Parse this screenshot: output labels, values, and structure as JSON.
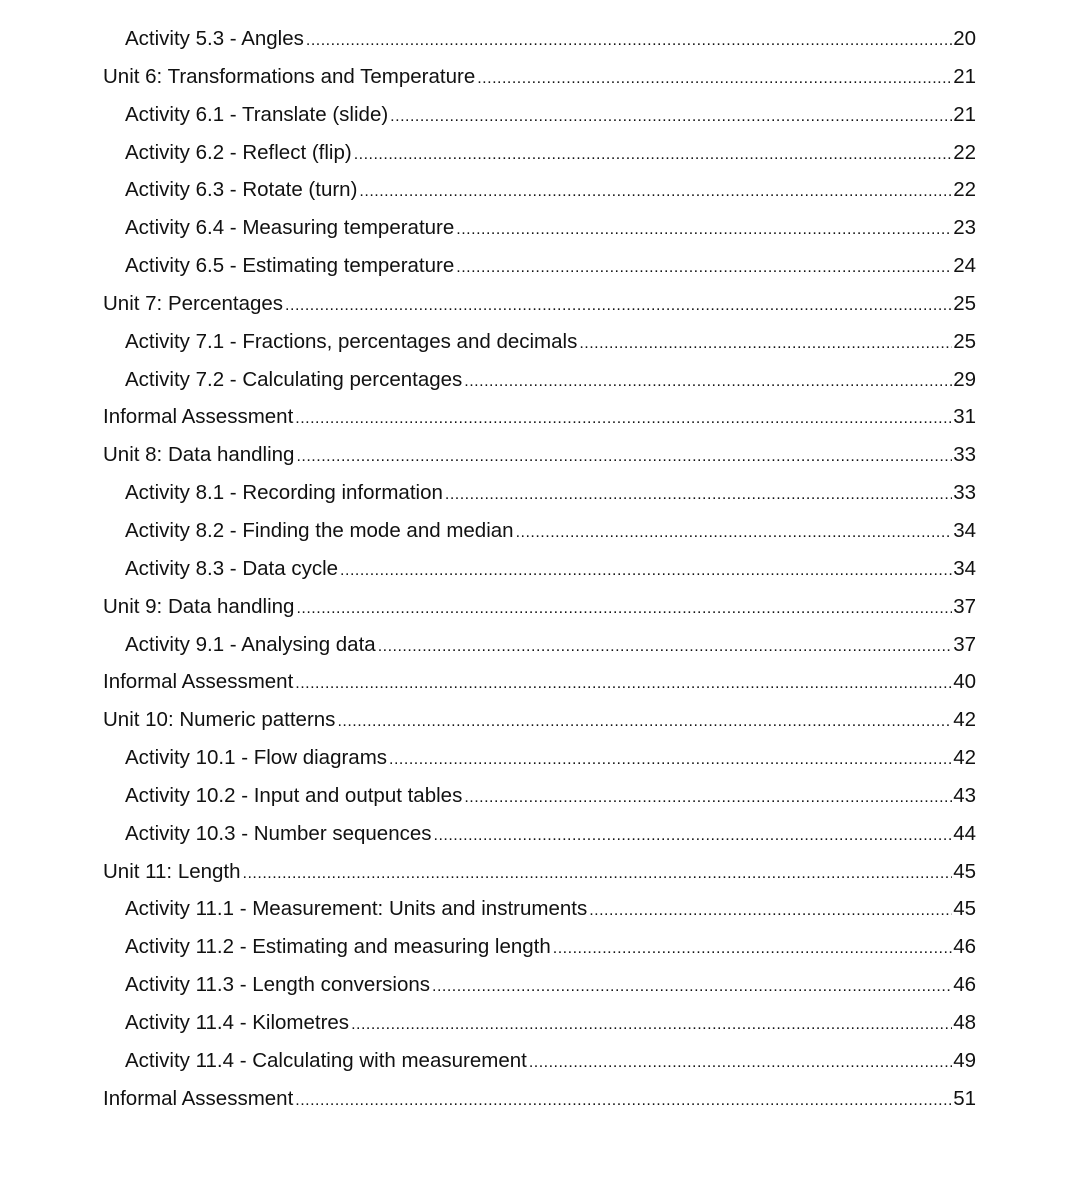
{
  "toc": {
    "entries": [
      {
        "level": "activity",
        "title": "Activity 5.3 - Angles",
        "page": "20"
      },
      {
        "level": "unit",
        "title": "Unit 6: Transformations and Temperature",
        "page": "21"
      },
      {
        "level": "activity",
        "title": "Activity 6.1 - Translate (slide)",
        "page": "21"
      },
      {
        "level": "activity",
        "title": "Activity 6.2 - Reflect (flip)",
        "page": "22"
      },
      {
        "level": "activity",
        "title": "Activity 6.3 - Rotate (turn)",
        "page": "22"
      },
      {
        "level": "activity",
        "title": "Activity 6.4 - Measuring temperature",
        "page": "23"
      },
      {
        "level": "activity",
        "title": "Activity 6.5 - Estimating temperature",
        "page": "24"
      },
      {
        "level": "unit",
        "title": "Unit 7: Percentages",
        "page": "25"
      },
      {
        "level": "activity",
        "title": "Activity 7.1 - Fractions, percentages and decimals",
        "page": "25"
      },
      {
        "level": "activity",
        "title": "Activity 7.2 - Calculating percentages",
        "page": "29"
      },
      {
        "level": "unit",
        "title": "Informal Assessment",
        "page": "31"
      },
      {
        "level": "unit",
        "title": "Unit 8: Data handling",
        "page": "33"
      },
      {
        "level": "activity",
        "title": "Activity 8.1 - Recording information",
        "page": "33"
      },
      {
        "level": "activity",
        "title": "Activity 8.2 - Finding the mode and median",
        "page": "34"
      },
      {
        "level": "activity",
        "title": "Activity 8.3 - Data cycle",
        "page": "34"
      },
      {
        "level": "unit",
        "title": "Unit 9: Data handling",
        "page": "37"
      },
      {
        "level": "activity",
        "title": "Activity 9.1 - Analysing data",
        "page": "37"
      },
      {
        "level": "unit",
        "title": "Informal Assessment",
        "page": "40"
      },
      {
        "level": "unit",
        "title": "Unit 10: Numeric patterns",
        "page": "42"
      },
      {
        "level": "activity",
        "title": "Activity 10.1 - Flow diagrams",
        "page": "42"
      },
      {
        "level": "activity",
        "title": "Activity 10.2 - Input and output tables",
        "page": "43"
      },
      {
        "level": "activity",
        "title": "Activity 10.3 - Number sequences",
        "page": "44"
      },
      {
        "level": "unit",
        "title": "Unit 11: Length",
        "page": "45"
      },
      {
        "level": "activity",
        "title": "Activity 11.1 - Measurement: Units and instruments",
        "page": "45"
      },
      {
        "level": "activity",
        "title": "Activity 11.2 - Estimating and measuring length",
        "page": "46"
      },
      {
        "level": "activity",
        "title": "Activity 11.3 - Length conversions",
        "page": "46"
      },
      {
        "level": "activity",
        "title": "Activity 11.4 - Kilometres",
        "page": "48"
      },
      {
        "level": "activity",
        "title": "Activity 11.4 - Calculating with measurement",
        "page": "49"
      },
      {
        "level": "unit",
        "title": "Informal Assessment",
        "page": "51"
      }
    ]
  }
}
